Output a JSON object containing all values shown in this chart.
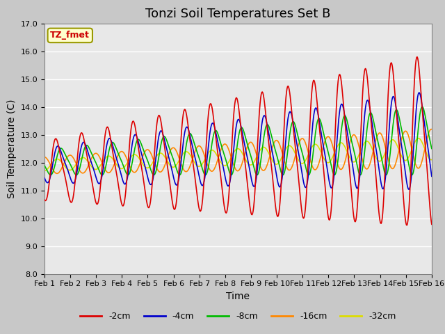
{
  "title": "Tonzi Soil Temperatures Set B",
  "xlabel": "Time",
  "ylabel": "Soil Temperature (C)",
  "ylim": [
    8.0,
    17.0
  ],
  "yticks": [
    8.0,
    9.0,
    10.0,
    11.0,
    12.0,
    13.0,
    14.0,
    15.0,
    16.0,
    17.0
  ],
  "xtick_labels": [
    "Feb 1",
    "Feb 2",
    "Feb 3",
    "Feb 4",
    "Feb 5",
    "Feb 6",
    "Feb 7",
    "Feb 8",
    "Feb 9",
    "Feb 10",
    "Feb 11",
    "Feb 12",
    "Feb 13",
    "Feb 14",
    "Feb 15",
    "Feb 16"
  ],
  "colors": {
    "-2cm": "#dd0000",
    "-4cm": "#0000cc",
    "-8cm": "#00bb00",
    "-16cm": "#ff8800",
    "-32cm": "#dddd00"
  },
  "legend_label": "TZ_fmet",
  "fig_facecolor": "#c8c8c8",
  "ax_facecolor": "#e8e8e8",
  "title_fontsize": 13,
  "axis_label_fontsize": 10,
  "tick_fontsize": 8
}
